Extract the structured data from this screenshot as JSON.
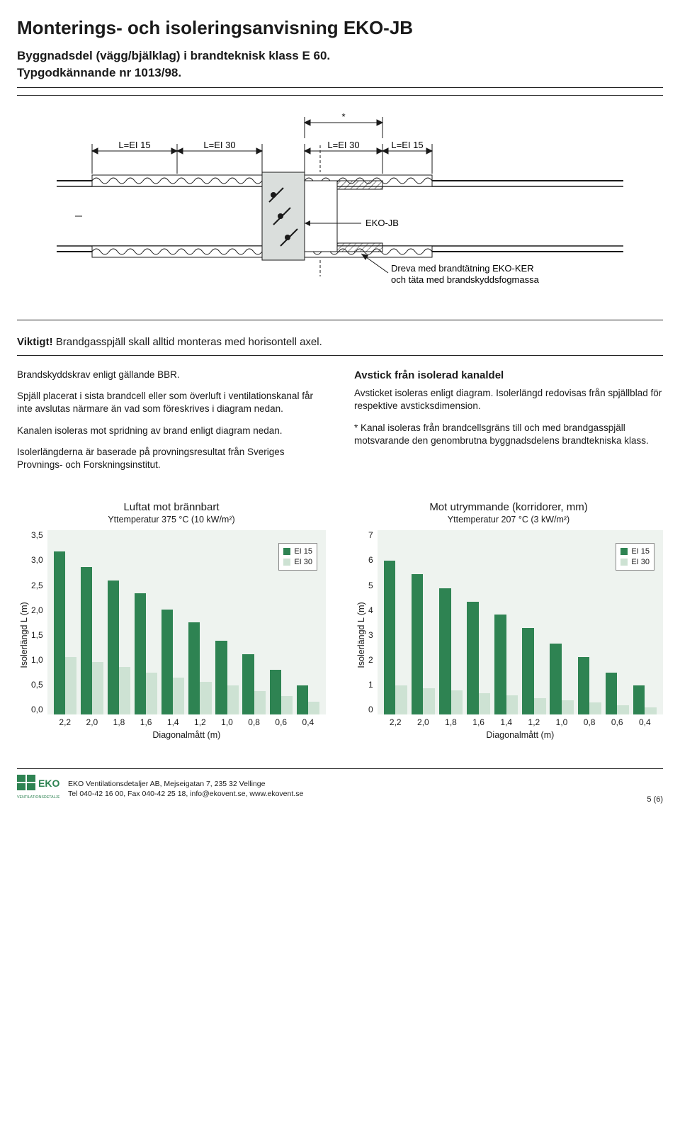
{
  "header": {
    "title": "Monterings- och isoleringsanvisning EKO-JB",
    "subtitle1": "Byggnadsdel (vägg/bjälklag) i brandteknisk klass E 60.",
    "subtitle2": "Typgodkännande nr 1013/98."
  },
  "diagram": {
    "labels": {
      "lei15": "L=EI 15",
      "lei30": "L=EI 30",
      "star": "*",
      "ekojb": "EKO-JB",
      "annot": "Dreva med brandtätning EKO-KER\noch täta med brandskyddsfogmassa"
    },
    "colors": {
      "line": "#1a1a1a",
      "shade": "#dadedc",
      "insulation": "#2a2a2a"
    }
  },
  "important": {
    "lead": "Viktigt!",
    "text": "Brandgasspjäll skall alltid monteras med horisontell axel."
  },
  "left": {
    "p1": "Brandskyddskrav enligt gällande BBR.",
    "p2": "Spjäll placerat i sista brandcell eller som överluft i ventilationskanal får inte avslutas närmare än vad som föreskrives i diagram nedan.",
    "p3": "Kanalen isoleras mot spridning av brand enligt diagram nedan.",
    "p4": "Isolerlängderna är baserade på provningsresultat från Sveriges Provnings- och Forskningsinstitut."
  },
  "right": {
    "h": "Avstick från isolerad kanaldel",
    "p1": "Avsticket isoleras enligt diagram. Isolerlängd redovisas från spjällblad för respektive avsticksdimension.",
    "p2": "* Kanal isoleras från brandcellsgräns till och med brandgasspjäll motsvarande den genombrutna byggnadsdelens brandtekniska klass."
  },
  "chartA": {
    "title": "Luftat mot brännbart",
    "subtitle": "Yttemperatur 375 °C (10 kW/m²)",
    "ylabel": "Isolerlängd L (m)",
    "xlabel": "Diagonalmått (m)",
    "ymax": 3.5,
    "ystep": 0.5,
    "categories": [
      "2,2",
      "2,0",
      "1,8",
      "1,6",
      "1,4",
      "1,2",
      "1,0",
      "0,8",
      "0,6",
      "0,4"
    ],
    "series": {
      "ei15": {
        "label": "EI 15",
        "color": "#2e8352",
        "values": [
          3.1,
          2.8,
          2.55,
          2.3,
          2.0,
          1.75,
          1.4,
          1.15,
          0.85,
          0.55
        ]
      },
      "ei30": {
        "label": "EI 30",
        "color": "#cde2d3",
        "values": [
          1.1,
          1.0,
          0.9,
          0.8,
          0.7,
          0.63,
          0.55,
          0.45,
          0.35,
          0.25
        ]
      }
    }
  },
  "chartB": {
    "title": "Mot utrymmande (korridorer, mm)",
    "subtitle": "Yttemperatur 207 °C (3 kW/m²)",
    "ylabel": "Isolerlängd L (m)",
    "xlabel": "Diagonalmått (m)",
    "ymax": 7,
    "ystep": 1,
    "categories": [
      "2,2",
      "2,0",
      "1,8",
      "1,6",
      "1,4",
      "1,2",
      "1,0",
      "0,8",
      "0,6",
      "0,4"
    ],
    "series": {
      "ei15": {
        "label": "EI 15",
        "color": "#2e8352",
        "values": [
          5.85,
          5.35,
          4.8,
          4.3,
          3.8,
          3.3,
          2.7,
          2.2,
          1.6,
          1.1
        ]
      },
      "ei30": {
        "label": "EI 30",
        "color": "#cde2d3",
        "values": [
          1.1,
          1.0,
          0.92,
          0.82,
          0.73,
          0.63,
          0.55,
          0.46,
          0.37,
          0.28
        ]
      }
    }
  },
  "footer": {
    "brand": "EKO",
    "brand_sub": "VENTILATIONSDETALJER",
    "line1": "EKO Ventilationsdetaljer AB, Mejseigatan 7, 235 32 Vellinge",
    "line2": "Tel 040-42 16 00, Fax 040-42 25 18, info@ekovent.se, www.ekovent.se",
    "page": "5 (6)",
    "brand_color": "#2e8352"
  }
}
